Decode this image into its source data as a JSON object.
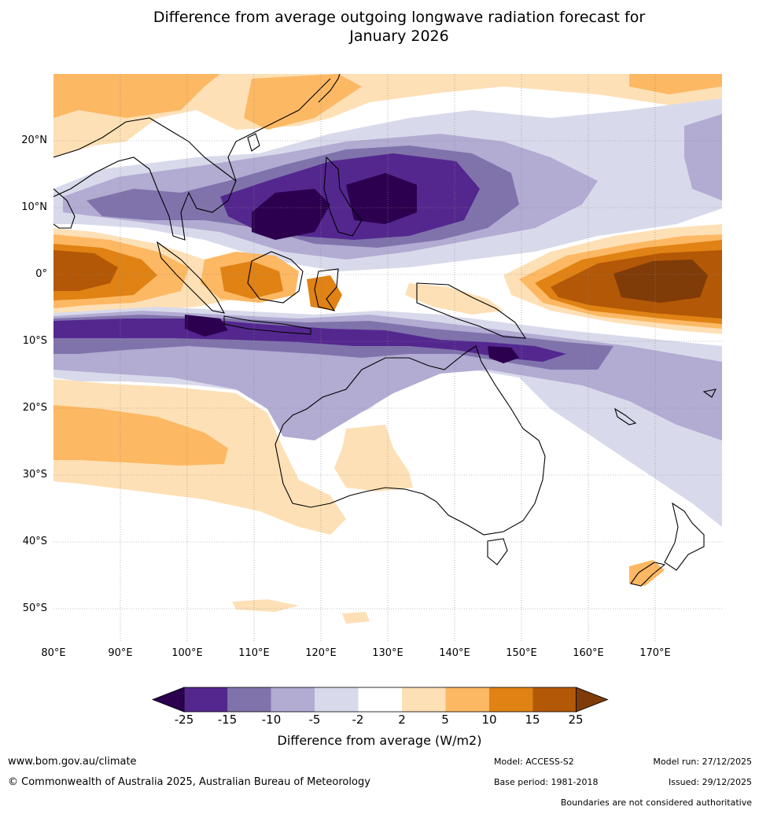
{
  "title": {
    "line1": "Difference from average outgoing longwave radiation forecast for",
    "line2": "January 2026"
  },
  "map": {
    "region": "Australasia and Indo-Pacific",
    "lat_labels": [
      "20°N",
      "10°N",
      "0°",
      "10°S",
      "20°S",
      "30°S",
      "40°S",
      "50°S"
    ],
    "lon_labels": [
      "80°E",
      "90°E",
      "100°E",
      "110°E",
      "120°E",
      "130°E",
      "140°E",
      "150°E",
      "160°E",
      "170°E"
    ],
    "lat_range": [
      -55,
      30
    ],
    "lon_range": [
      80,
      180
    ]
  },
  "colorbar": {
    "ticks": [
      "-25",
      "-15",
      "-10",
      "-5",
      "-2",
      "2",
      "5",
      "10",
      "15",
      "25"
    ],
    "colors": [
      "#2c004f",
      "#54278f",
      "#8073ac",
      "#b2abd2",
      "#d8daeb",
      "#ffffff",
      "#fee0b6",
      "#fdb863",
      "#e08214",
      "#b35806",
      "#7f3b08"
    ],
    "label": "Difference from average (W/m2)"
  },
  "footer": {
    "website": "www.bom.gov.au/climate",
    "copyright": "© Commonwealth of Australia 2025, Australian Bureau of Meteorology",
    "model": "Model: ACCESS-S2",
    "base_period": "Base period: 1981-2018",
    "model_run": "Model run: 27/12/2025",
    "issued": "Issued: 29/12/2025",
    "disclaimer": "Boundaries are not considered authoritative"
  }
}
